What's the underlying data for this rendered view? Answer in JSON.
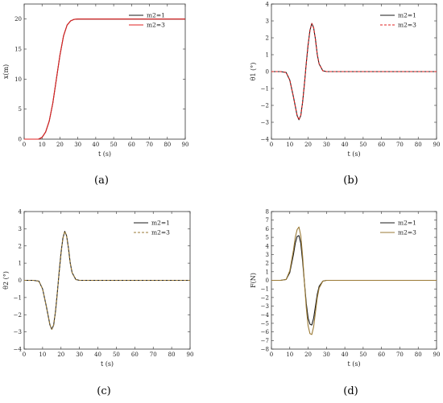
{
  "chart_data": [
    {
      "type": "line",
      "panel_label": "(a)",
      "xlabel": "t (s)",
      "ylabel": "x(m)",
      "xlim": [
        0,
        90
      ],
      "ylim": [
        0,
        22.5
      ],
      "xticks": [
        0,
        10,
        20,
        30,
        40,
        50,
        60,
        70,
        80,
        90
      ],
      "yticks": [
        0,
        5,
        10,
        15,
        20
      ],
      "legend_position": "upper-right",
      "series": [
        {
          "name": "m2=1",
          "color": "#1a1a1a",
          "dash": "solid",
          "x": [
            0,
            8,
            10,
            12,
            14,
            16,
            18,
            20,
            22,
            24,
            26,
            28,
            30,
            35,
            40,
            90
          ],
          "y": [
            0,
            0,
            0.3,
            1.2,
            3.0,
            6.0,
            10.0,
            14.0,
            17.2,
            19.0,
            19.7,
            19.95,
            20,
            20,
            20,
            20
          ]
        },
        {
          "name": "m2=3",
          "color": "#e02020",
          "dash": "solid",
          "x": [
            0,
            8,
            10,
            12,
            14,
            16,
            18,
            20,
            22,
            24,
            26,
            28,
            30,
            35,
            40,
            90
          ],
          "y": [
            0,
            0,
            0.3,
            1.2,
            3.0,
            6.0,
            10.0,
            14.0,
            17.2,
            19.0,
            19.7,
            19.95,
            20,
            20,
            20,
            20
          ]
        }
      ]
    },
    {
      "type": "line",
      "panel_label": "(b)",
      "xlabel": "t (s)",
      "ylabel": "θ1 (°)",
      "xlim": [
        0,
        90
      ],
      "ylim": [
        -4,
        4
      ],
      "xticks": [
        0,
        10,
        20,
        30,
        40,
        50,
        60,
        70,
        80,
        90
      ],
      "yticks": [
        -4,
        -3,
        -2,
        -1,
        0,
        1,
        2,
        3,
        4
      ],
      "legend_position": "upper-right",
      "series": [
        {
          "name": "m2=1",
          "color": "#1a1a1a",
          "dash": "solid",
          "x": [
            0,
            5,
            8,
            10,
            12,
            14,
            15,
            16,
            17,
            18,
            19,
            20,
            21,
            22,
            23,
            24,
            25,
            26,
            28,
            30,
            35,
            90
          ],
          "y": [
            0,
            0,
            -0.05,
            -0.5,
            -1.5,
            -2.6,
            -2.85,
            -2.6,
            -1.8,
            -0.7,
            0.5,
            1.6,
            2.45,
            2.85,
            2.6,
            1.9,
            1.0,
            0.45,
            0.05,
            0,
            0,
            0
          ]
        },
        {
          "name": "m2=3",
          "color": "#e02020",
          "dash": "dashed",
          "x": [
            0,
            5,
            8,
            10,
            12,
            14,
            15,
            16,
            17,
            18,
            19,
            20,
            21,
            22,
            23,
            24,
            25,
            26,
            28,
            30,
            35,
            90
          ],
          "y": [
            0,
            0,
            -0.05,
            -0.5,
            -1.5,
            -2.6,
            -2.85,
            -2.6,
            -1.8,
            -0.7,
            0.5,
            1.6,
            2.45,
            2.85,
            2.6,
            1.9,
            1.0,
            0.45,
            0.05,
            0,
            0,
            0
          ]
        }
      ]
    },
    {
      "type": "line",
      "panel_label": "(c)",
      "xlabel": "t (s)",
      "ylabel": "θ2 (°)",
      "xlim": [
        0,
        90
      ],
      "ylim": [
        -4,
        4
      ],
      "xticks": [
        0,
        10,
        20,
        30,
        40,
        50,
        60,
        70,
        80,
        90
      ],
      "yticks": [
        -4,
        -3,
        -2,
        -1,
        0,
        1,
        2,
        3,
        4
      ],
      "legend_position": "upper-right",
      "series": [
        {
          "name": "m2=1",
          "color": "#1a1a1a",
          "dash": "solid",
          "x": [
            0,
            5,
            8,
            10,
            12,
            14,
            15,
            16,
            17,
            18,
            19,
            20,
            21,
            22,
            23,
            24,
            25,
            26,
            28,
            30,
            35,
            90
          ],
          "y": [
            0,
            0,
            -0.05,
            -0.5,
            -1.5,
            -2.6,
            -2.85,
            -2.6,
            -1.8,
            -0.7,
            0.5,
            1.6,
            2.45,
            2.85,
            2.6,
            1.9,
            1.0,
            0.45,
            0.05,
            0,
            0,
            0
          ]
        },
        {
          "name": "m2=3",
          "color": "#9a7a35",
          "dash": "dashed",
          "x": [
            0,
            5,
            8,
            10,
            12,
            14,
            15,
            16,
            17,
            18,
            19,
            20,
            21,
            22,
            23,
            24,
            25,
            26,
            28,
            30,
            35,
            90
          ],
          "y": [
            0,
            0,
            -0.05,
            -0.5,
            -1.5,
            -2.6,
            -2.85,
            -2.6,
            -1.8,
            -0.7,
            0.5,
            1.6,
            2.45,
            2.85,
            2.6,
            1.9,
            1.0,
            0.45,
            0.05,
            0,
            0,
            0
          ]
        }
      ]
    },
    {
      "type": "line",
      "panel_label": "(d)",
      "xlabel": "t (s)",
      "ylabel": "F(N)",
      "xlim": [
        0,
        90
      ],
      "ylim": [
        -8,
        8
      ],
      "xticks": [
        0,
        10,
        20,
        30,
        40,
        50,
        60,
        70,
        80,
        90
      ],
      "yticks": [
        -8,
        -7,
        -6,
        -5,
        -4,
        -3,
        -2,
        -1,
        0,
        1,
        2,
        3,
        4,
        5,
        6,
        7,
        8
      ],
      "legend_position": "upper-right",
      "series": [
        {
          "name": "m2=1",
          "color": "#1a1a1a",
          "dash": "solid",
          "x": [
            0,
            5,
            8,
            10,
            12,
            13,
            14,
            15,
            16,
            17,
            18,
            19,
            20,
            21,
            22,
            23,
            24,
            25,
            26,
            28,
            30,
            35,
            90
          ],
          "y": [
            0,
            0,
            0.1,
            0.9,
            3.0,
            4.3,
            5.1,
            5.2,
            4.3,
            2.2,
            -0.3,
            -2.7,
            -4.4,
            -5.1,
            -5.2,
            -4.4,
            -3.0,
            -1.6,
            -0.7,
            -0.1,
            0,
            0,
            0
          ]
        },
        {
          "name": "m2=3",
          "color": "#9a7a35",
          "dash": "solid",
          "x": [
            0,
            5,
            8,
            10,
            12,
            13,
            14,
            15,
            16,
            17,
            18,
            19,
            20,
            21,
            22,
            23,
            24,
            25,
            26,
            28,
            30,
            35,
            90
          ],
          "y": [
            0,
            0,
            0.1,
            1.1,
            3.5,
            5.0,
            5.9,
            6.2,
            5.2,
            2.8,
            -0.3,
            -3.2,
            -5.3,
            -6.2,
            -6.3,
            -5.4,
            -3.7,
            -2.0,
            -0.9,
            -0.1,
            0,
            0,
            0
          ]
        }
      ]
    }
  ]
}
